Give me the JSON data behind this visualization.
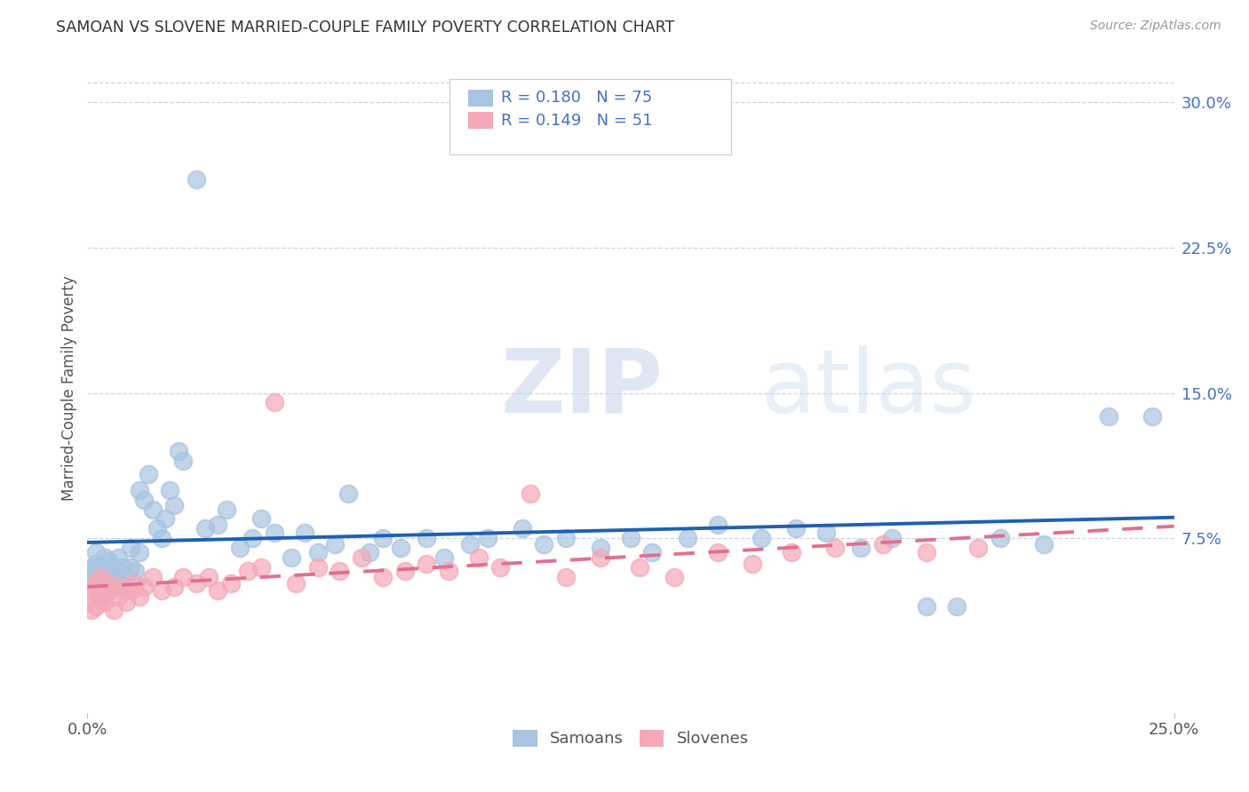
{
  "title": "SAMOAN VS SLOVENE MARRIED-COUPLE FAMILY POVERTY CORRELATION CHART",
  "source": "Source: ZipAtlas.com",
  "ylabel_label": "Married-Couple Family Poverty",
  "right_yticks": [
    "30.0%",
    "22.5%",
    "15.0%",
    "7.5%"
  ],
  "right_ytick_vals": [
    0.3,
    0.225,
    0.15,
    0.075
  ],
  "xlim": [
    0.0,
    0.25
  ],
  "ylim": [
    -0.015,
    0.32
  ],
  "samoan_color": "#a8c4e0",
  "slovene_color": "#f4a8b8",
  "samoan_line_color": "#2060b0",
  "slovene_line_color": "#e07090",
  "samoan_r": 0.18,
  "samoan_n": 75,
  "slovene_r": 0.149,
  "slovene_n": 51,
  "watermark_zip": "ZIP",
  "watermark_atlas": "atlas",
  "background_color": "#ffffff",
  "grid_color": "#c8d4e8",
  "samoan_x": [
    0.0,
    0.001,
    0.001,
    0.002,
    0.002,
    0.002,
    0.003,
    0.003,
    0.003,
    0.004,
    0.004,
    0.005,
    0.005,
    0.005,
    0.006,
    0.006,
    0.007,
    0.007,
    0.008,
    0.008,
    0.009,
    0.01,
    0.01,
    0.011,
    0.012,
    0.012,
    0.013,
    0.014,
    0.015,
    0.016,
    0.017,
    0.018,
    0.019,
    0.02,
    0.021,
    0.022,
    0.025,
    0.027,
    0.03,
    0.032,
    0.035,
    0.038,
    0.04,
    0.043,
    0.047,
    0.05,
    0.053,
    0.057,
    0.06,
    0.065,
    0.068,
    0.072,
    0.078,
    0.082,
    0.088,
    0.092,
    0.1,
    0.105,
    0.11,
    0.118,
    0.125,
    0.13,
    0.138,
    0.145,
    0.155,
    0.163,
    0.17,
    0.178,
    0.185,
    0.193,
    0.2,
    0.21,
    0.22,
    0.235,
    0.245
  ],
  "samoan_y": [
    0.058,
    0.055,
    0.06,
    0.05,
    0.062,
    0.068,
    0.045,
    0.055,
    0.06,
    0.052,
    0.065,
    0.048,
    0.058,
    0.063,
    0.055,
    0.06,
    0.058,
    0.065,
    0.052,
    0.06,
    0.055,
    0.06,
    0.07,
    0.058,
    0.1,
    0.068,
    0.095,
    0.108,
    0.09,
    0.08,
    0.075,
    0.085,
    0.1,
    0.092,
    0.12,
    0.115,
    0.26,
    0.08,
    0.082,
    0.09,
    0.07,
    0.075,
    0.085,
    0.078,
    0.065,
    0.078,
    0.068,
    0.072,
    0.098,
    0.068,
    0.075,
    0.07,
    0.075,
    0.065,
    0.072,
    0.075,
    0.08,
    0.072,
    0.075,
    0.07,
    0.075,
    0.068,
    0.075,
    0.082,
    0.075,
    0.08,
    0.078,
    0.07,
    0.075,
    0.04,
    0.04,
    0.075,
    0.072,
    0.138,
    0.138
  ],
  "slovene_x": [
    0.0,
    0.001,
    0.001,
    0.002,
    0.002,
    0.003,
    0.003,
    0.004,
    0.005,
    0.005,
    0.006,
    0.007,
    0.008,
    0.009,
    0.01,
    0.011,
    0.012,
    0.013,
    0.015,
    0.017,
    0.02,
    0.022,
    0.025,
    0.028,
    0.03,
    0.033,
    0.037,
    0.04,
    0.043,
    0.048,
    0.053,
    0.058,
    0.063,
    0.068,
    0.073,
    0.078,
    0.083,
    0.09,
    0.095,
    0.102,
    0.11,
    0.118,
    0.127,
    0.135,
    0.145,
    0.153,
    0.162,
    0.172,
    0.183,
    0.193,
    0.205
  ],
  "slovene_y": [
    0.042,
    0.038,
    0.048,
    0.04,
    0.052,
    0.045,
    0.055,
    0.042,
    0.048,
    0.052,
    0.038,
    0.045,
    0.05,
    0.042,
    0.048,
    0.052,
    0.045,
    0.05,
    0.055,
    0.048,
    0.05,
    0.055,
    0.052,
    0.055,
    0.048,
    0.052,
    0.058,
    0.06,
    0.145,
    0.052,
    0.06,
    0.058,
    0.065,
    0.055,
    0.058,
    0.062,
    0.058,
    0.065,
    0.06,
    0.098,
    0.055,
    0.065,
    0.06,
    0.055,
    0.068,
    0.062,
    0.068,
    0.07,
    0.072,
    0.068,
    0.07
  ]
}
